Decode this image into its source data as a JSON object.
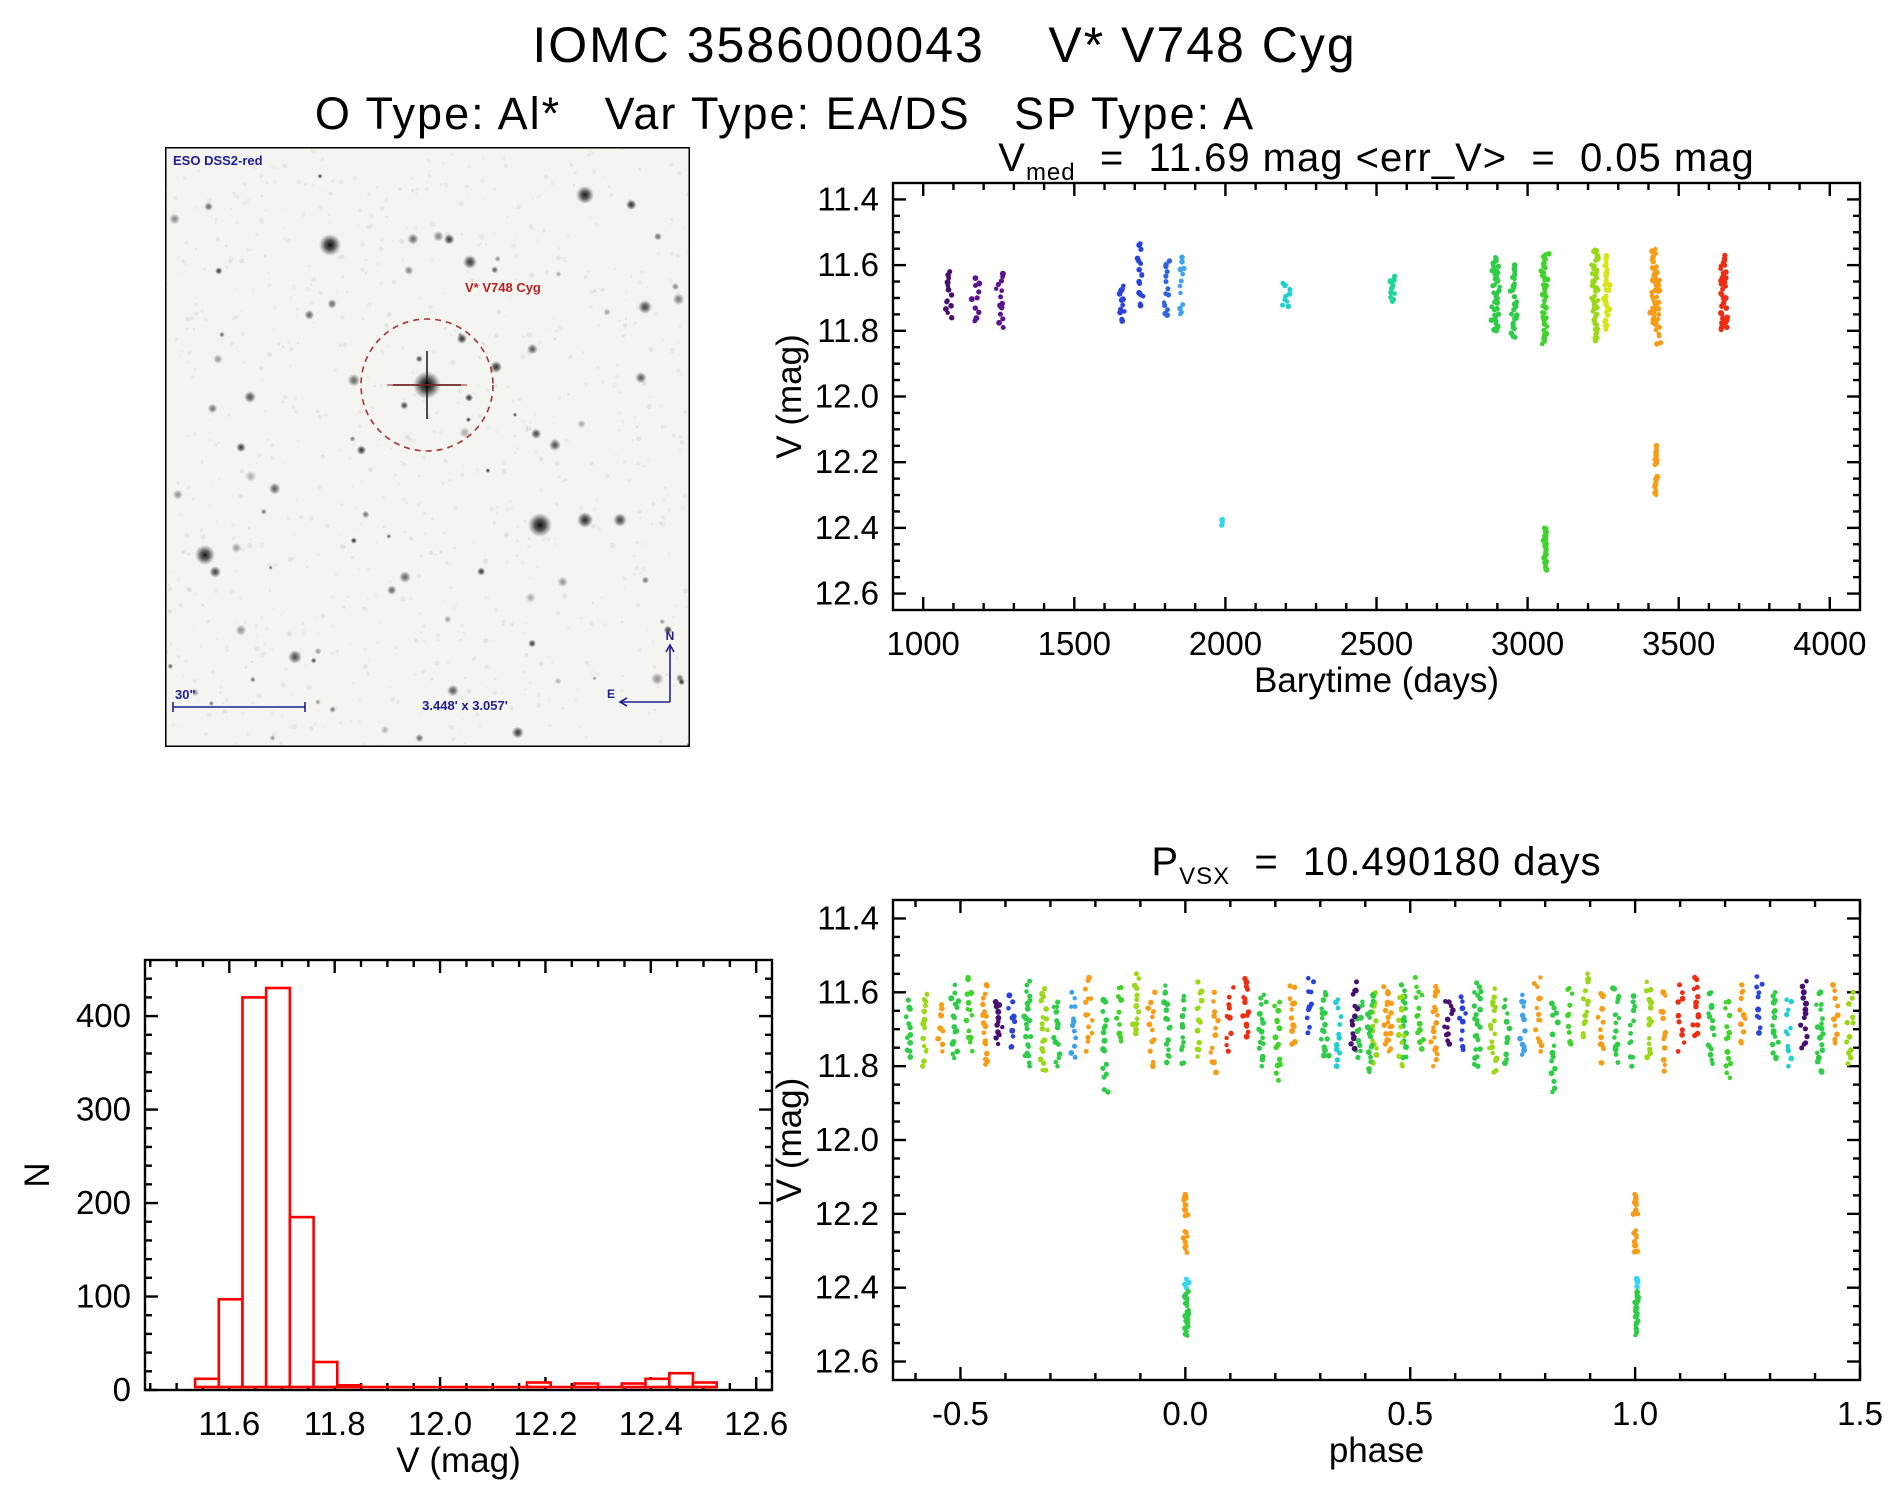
{
  "page": {
    "title": "IOMC 3586000043    V* V748 Cyg",
    "subtitle": "O Type: Al*   Var Type: EA/DS   SP Type: A"
  },
  "sky_image": {
    "survey_label": "ESO DSS2-red",
    "target_label": "V* V748 Cyg",
    "scale_label": "30\"",
    "fov_label": "3.448' x 3.057'",
    "compass_north": "N",
    "compass_east": "E",
    "annotation_blue": "#202090",
    "annotation_red": "#bb2020",
    "circle_color": "#a83232"
  },
  "chart_data": [
    {
      "id": "lightcurve",
      "type": "scatter",
      "title": {
        "prefix": "V",
        "sub": "med",
        "rest": "  =  11.69 mag <err_V>  =  0.05 mag"
      },
      "xlabel": "Barytime (days)",
      "ylabel": "V (mag)",
      "xlim": [
        900,
        4100
      ],
      "ylim": [
        11.35,
        12.65
      ],
      "xticks": {
        "values": [
          1000,
          1500,
          2000,
          2500,
          3000,
          3500,
          4000
        ],
        "labels": [
          "1000",
          "1500",
          "2000",
          "2500",
          "3000",
          "3500",
          "4000"
        ]
      },
      "yticks": {
        "values": [
          11.4,
          11.6,
          11.8,
          12.0,
          12.2,
          12.4,
          12.6
        ],
        "labels": [
          "11.4",
          "11.6",
          "11.8",
          "12.0",
          "12.2",
          "12.4",
          "12.6"
        ]
      },
      "x_minor": 100,
      "y_minor": 0.05,
      "grid": false,
      "legend": false,
      "clusters": [
        [
          1085,
          11.62,
          11.76,
          13,
          "#47106f"
        ],
        [
          1175,
          11.63,
          11.77,
          10,
          "#5c1391"
        ],
        [
          1255,
          11.62,
          11.79,
          14,
          "#5c1391"
        ],
        [
          1655,
          11.66,
          11.77,
          12,
          "#2a43dd"
        ],
        [
          1720,
          11.53,
          11.73,
          16,
          "#2a43dd"
        ],
        [
          1805,
          11.58,
          11.76,
          14,
          "#2f63e0"
        ],
        [
          1852,
          11.57,
          11.76,
          12,
          "#3fa3ec"
        ],
        [
          1990,
          12.375,
          12.395,
          3,
          "#35d7f0",
          1.5
        ],
        [
          2200,
          11.655,
          11.73,
          9,
          "#20cfd2"
        ],
        [
          2550,
          11.63,
          11.715,
          10,
          "#1fd795"
        ],
        [
          2895,
          11.575,
          11.8,
          42,
          "#2ecc47"
        ],
        [
          2955,
          11.6,
          11.82,
          30,
          "#2ecc47"
        ],
        [
          3055,
          11.565,
          11.84,
          40,
          "#3fd32c"
        ],
        [
          3060,
          12.4,
          12.53,
          26,
          "#3fd32c",
          2
        ],
        [
          3225,
          11.55,
          11.83,
          45,
          "#9bd818"
        ],
        [
          3262,
          11.57,
          11.8,
          28,
          "#d8e414"
        ],
        [
          3420,
          11.55,
          11.78,
          32,
          "#f79c16"
        ],
        [
          3432,
          11.62,
          11.84,
          24,
          "#f79c16"
        ],
        [
          3425,
          12.15,
          12.21,
          10,
          "#f79c16",
          2
        ],
        [
          3425,
          12.24,
          12.3,
          9,
          "#f79c16",
          2
        ],
        [
          3648,
          11.57,
          11.8,
          36,
          "#ee2e12"
        ]
      ]
    },
    {
      "id": "histogram",
      "type": "histogram",
      "xlabel": "V (mag)",
      "ylabel": "N",
      "color": "#ff0000",
      "xlim": [
        11.44,
        12.63
      ],
      "ylim": [
        460,
        0
      ],
      "xticks": {
        "values": [
          11.6,
          11.8,
          12.0,
          12.2,
          12.4,
          12.6
        ],
        "labels": [
          "11.6",
          "11.8",
          "12.0",
          "12.2",
          "12.4",
          "12.6"
        ]
      },
      "yticks": {
        "values": [
          0,
          100,
          200,
          300,
          400
        ],
        "labels": [
          "0",
          "100",
          "200",
          "300",
          "400"
        ]
      },
      "x_minor": 0.05,
      "y_minor": 20,
      "bin_width": 0.045,
      "bars": [
        [
          11.535,
          12
        ],
        [
          11.58,
          97
        ],
        [
          11.625,
          420
        ],
        [
          11.67,
          430
        ],
        [
          11.715,
          185
        ],
        [
          11.76,
          30
        ],
        [
          11.805,
          5
        ],
        [
          12.12,
          3
        ],
        [
          12.165,
          8
        ],
        [
          12.21,
          3
        ],
        [
          12.255,
          7
        ],
        [
          12.345,
          7
        ],
        [
          12.39,
          12
        ],
        [
          12.435,
          18
        ],
        [
          12.48,
          8
        ]
      ]
    },
    {
      "id": "phase",
      "type": "scatter",
      "title": {
        "prefix": "P",
        "sub": "VSX",
        "rest": "  =  10.490180 days"
      },
      "xlabel": "phase",
      "ylabel": "V (mag)",
      "xlim": [
        -0.65,
        1.5
      ],
      "ylim": [
        11.35,
        12.65
      ],
      "xticks": {
        "values": [
          -0.5,
          0.0,
          0.5,
          1.0,
          1.5
        ],
        "labels": [
          "-0.5",
          "0.0",
          "0.5",
          "1.0",
          "1.5"
        ]
      },
      "yticks": {
        "values": [
          11.4,
          11.6,
          11.8,
          12.0,
          12.2,
          12.4,
          12.6
        ],
        "labels": [
          "11.4",
          "11.6",
          "11.8",
          "12.0",
          "12.2",
          "12.4",
          "12.6"
        ]
      },
      "x_minor": 0.1,
      "y_minor": 0.05,
      "repeat_offset": 1.0,
      "clusters": [
        [
          -0.615,
          11.62,
          11.78,
          12,
          "#2ecc47"
        ],
        [
          -0.58,
          11.6,
          11.8,
          14,
          "#9bd818"
        ],
        [
          -0.545,
          11.63,
          11.76,
          10,
          "#f79c16"
        ],
        [
          -0.515,
          11.58,
          11.78,
          16,
          "#2ecc47"
        ],
        [
          -0.48,
          11.56,
          11.76,
          14,
          "#3fd32c"
        ],
        [
          -0.445,
          11.58,
          11.8,
          18,
          "#f79c16"
        ],
        [
          -0.415,
          11.62,
          11.74,
          12,
          "#47106f"
        ],
        [
          -0.385,
          11.6,
          11.76,
          10,
          "#2a43dd"
        ],
        [
          -0.35,
          11.57,
          11.8,
          22,
          "#2ecc47"
        ],
        [
          -0.315,
          11.59,
          11.82,
          18,
          "#9bd818"
        ],
        [
          -0.285,
          11.62,
          11.8,
          14,
          "#2ecc47"
        ],
        [
          -0.25,
          11.6,
          11.78,
          12,
          "#3fa3ec"
        ],
        [
          -0.215,
          11.56,
          11.76,
          14,
          "#f79c16"
        ],
        [
          -0.18,
          11.62,
          11.87,
          16,
          "#2ecc47"
        ],
        [
          -0.145,
          11.58,
          11.74,
          10,
          "#3fd32c"
        ],
        [
          -0.11,
          11.55,
          11.72,
          14,
          "#9bd818"
        ],
        [
          -0.075,
          11.6,
          11.8,
          12,
          "#f79c16"
        ],
        [
          -0.04,
          11.58,
          11.79,
          16,
          "#2ecc47"
        ],
        [
          -0.005,
          11.61,
          11.8,
          12,
          "#2ecc47"
        ],
        [
          0.0,
          12.145,
          12.205,
          10,
          "#f79c16",
          2
        ],
        [
          0.0,
          12.245,
          12.305,
          9,
          "#f79c16",
          2
        ],
        [
          0.003,
          12.375,
          12.4,
          5,
          "#35d7f0",
          2
        ],
        [
          0.003,
          12.41,
          12.53,
          24,
          "#2ecc47",
          2
        ],
        [
          0.03,
          11.57,
          11.78,
          14,
          "#9bd818"
        ],
        [
          0.065,
          11.6,
          11.82,
          12,
          "#f79c16"
        ],
        [
          0.1,
          11.58,
          11.76,
          10,
          "#ee2e12"
        ],
        [
          0.135,
          11.56,
          11.72,
          14,
          "#ee2e12"
        ],
        [
          0.17,
          11.6,
          11.8,
          16,
          "#2ecc47"
        ],
        [
          0.205,
          11.62,
          11.84,
          14,
          "#3fd32c"
        ],
        [
          0.24,
          11.58,
          11.74,
          12,
          "#f79c16"
        ],
        [
          0.275,
          11.55,
          11.71,
          10,
          "#2a43dd"
        ],
        [
          0.31,
          11.6,
          11.78,
          16,
          "#2ecc47"
        ],
        [
          0.34,
          11.62,
          11.8,
          12,
          "#20cfd2"
        ],
        [
          0.375,
          11.57,
          11.76,
          14,
          "#47106f"
        ],
        [
          0.41,
          11.6,
          11.82,
          18,
          "#2ecc47"
        ],
        [
          0.445,
          11.58,
          11.74,
          10,
          "#f79c16"
        ],
        [
          0.48,
          11.6,
          11.8,
          12,
          "#9bd818"
        ]
      ]
    }
  ]
}
